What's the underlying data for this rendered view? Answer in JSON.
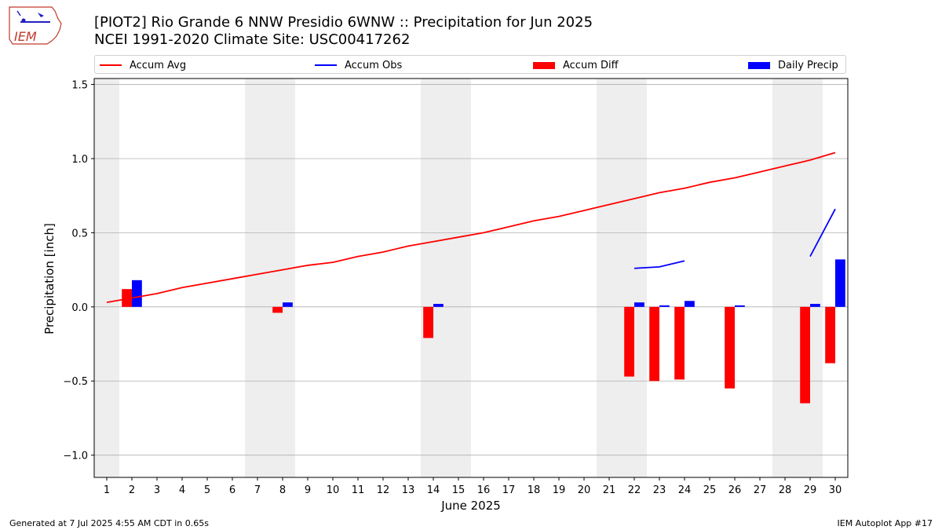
{
  "header": {
    "logo_text": "IEM",
    "title_line1": "[PIOT2] Rio Grande 6 NNW Presidio 6WNW :: Precipitation for Jun 2025",
    "title_line2": "NCEI 1991-2020 Climate Site: USC00417262"
  },
  "legend": [
    {
      "label": "Accum Avg",
      "kind": "line",
      "color": "#ff0000"
    },
    {
      "label": "Accum Obs",
      "kind": "line",
      "color": "#0000ff"
    },
    {
      "label": "Accum Diff",
      "kind": "bar",
      "color": "#ff0000"
    },
    {
      "label": "Daily Precip",
      "kind": "bar",
      "color": "#0000ff"
    }
  ],
  "footer": {
    "left": "Generated at 7 Jul 2025 4:55 AM CDT in 0.65s",
    "right": "IEM Autoplot App #17"
  },
  "chart_data": {
    "type": "bar",
    "xlabel": "June 2025",
    "ylabel": "Precipitation [inch]",
    "xlim": [
      0.5,
      30.5
    ],
    "ylim": [
      -1.15,
      1.54
    ],
    "x_ticks": [
      1,
      2,
      3,
      4,
      5,
      6,
      7,
      8,
      9,
      10,
      11,
      12,
      13,
      14,
      15,
      16,
      17,
      18,
      19,
      20,
      21,
      22,
      23,
      24,
      25,
      26,
      27,
      28,
      29,
      30
    ],
    "y_ticks": [
      {
        "value": -1.0,
        "label": "−1.0"
      },
      {
        "value": -0.5,
        "label": "−0.5"
      },
      {
        "value": 0.0,
        "label": "0.0"
      },
      {
        "value": 0.5,
        "label": "0.5"
      },
      {
        "value": 1.0,
        "label": "1.0"
      },
      {
        "value": 1.5,
        "label": "1.5"
      }
    ],
    "grid": "horizontal",
    "weekend_shading": [
      [
        0.5,
        1.5
      ],
      [
        6.5,
        8.5
      ],
      [
        13.5,
        15.5
      ],
      [
        20.5,
        22.5
      ],
      [
        27.5,
        29.5
      ]
    ],
    "accum_avg": {
      "name": "Accum Avg",
      "x": [
        1,
        2,
        3,
        4,
        5,
        6,
        7,
        8,
        9,
        10,
        11,
        12,
        13,
        14,
        15,
        16,
        17,
        18,
        19,
        20,
        21,
        22,
        23,
        24,
        25,
        26,
        27,
        28,
        29,
        30
      ],
      "values": [
        0.03,
        0.06,
        0.09,
        0.13,
        0.16,
        0.19,
        0.22,
        0.25,
        0.28,
        0.3,
        0.34,
        0.37,
        0.41,
        0.44,
        0.47,
        0.5,
        0.54,
        0.58,
        0.61,
        0.65,
        0.69,
        0.73,
        0.77,
        0.8,
        0.84,
        0.87,
        0.91,
        0.95,
        0.99,
        1.04
      ]
    },
    "accum_obs": {
      "name": "Accum Obs",
      "segments": [
        {
          "x": [
            22,
            23,
            24
          ],
          "values": [
            0.26,
            0.27,
            0.31
          ]
        },
        {
          "x": [
            29,
            30
          ],
          "values": [
            0.34,
            0.66
          ]
        }
      ]
    },
    "accum_diff": {
      "name": "Accum Diff",
      "x": [
        2,
        8,
        14,
        22,
        23,
        24,
        26,
        29,
        30
      ],
      "values": [
        0.12,
        -0.04,
        -0.21,
        -0.47,
        -0.5,
        -0.49,
        -0.55,
        -0.65,
        -0.38
      ]
    },
    "daily_precip": {
      "name": "Daily Precip",
      "x": [
        2,
        8,
        14,
        22,
        23,
        24,
        26,
        29,
        30
      ],
      "values": [
        0.18,
        0.03,
        0.02,
        0.03,
        0.01,
        0.04,
        0.01,
        0.02,
        0.32
      ]
    }
  }
}
